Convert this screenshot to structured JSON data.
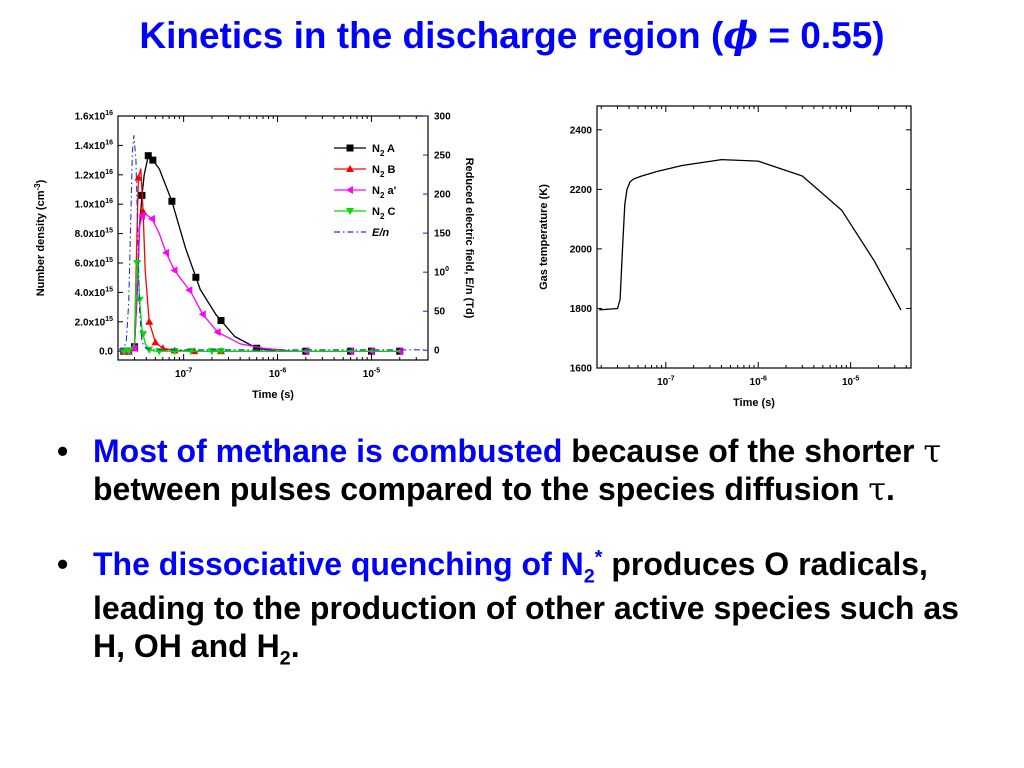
{
  "slide": {
    "title_prefix": "Kinetics in the discharge region (",
    "title_symbol": "ϕ",
    "title_suffix": " = 0.55)"
  },
  "bullets": [
    {
      "highlight": "Most of methane is combusted",
      "t1": " because of the shorter ",
      "sym1": "τ",
      "t2": " between pulses compared to the species diffusion ",
      "sym2": "τ",
      "t3": "."
    },
    {
      "highlight": "The dissociative quenching of N",
      "hl_sub": "2",
      "hl_sup": "*",
      "t1": " produces O radicals, leading to the production of other active species such as H, OH and H",
      "sub1": "2",
      "t2": "."
    }
  ],
  "colors": {
    "title": "#0000ff",
    "highlight": "#0000ff",
    "axis_right": "#1a1acc"
  },
  "chart_data": [
    {
      "type": "line",
      "xlabel": "Time (s)",
      "ylabel": "Number density (cm⁻³)",
      "y2label": "Reduced electric field, E/n (Td)",
      "xscale": "log",
      "xlim": [
        2e-08,
        4e-05
      ],
      "ylim": [
        -600000000000000.0,
        1.6e+16
      ],
      "y2lim": [
        -12.5,
        300
      ],
      "xticks": [
        1e-07,
        1e-06,
        1e-05
      ],
      "xtick_labels": [
        "10-7",
        "10-6",
        "10-5"
      ],
      "yticks": [
        0,
        2000000000000000.0,
        4000000000000000.0,
        6000000000000000.0,
        8000000000000000.0,
        1e+16,
        1.2e+16,
        1.4e+16,
        1.6e+16
      ],
      "ytick_labels": [
        "0.0",
        "2.0x1015",
        "4.0x1015",
        "6.0x1015",
        "8.0x1015",
        "1.0x1016",
        "1.2x1016",
        "1.4x1016",
        "1.6x1016"
      ],
      "y2ticks": [
        0,
        50,
        100,
        150,
        200,
        250,
        300
      ],
      "y2tick_labels": [
        "0",
        "50",
        "100",
        "150",
        "200",
        "250",
        "300"
      ],
      "legend_position": "top-right",
      "series": [
        {
          "name": "N2 A",
          "color": "#000000",
          "marker": "square",
          "axis": "left",
          "x": [
            2.3e-08,
            2.6e-08,
            3e-08,
            3.2e-08,
            3.4e-08,
            3.6e-08,
            3.8e-08,
            4.2e-08,
            4.7e-08,
            5.5e-08,
            7.5e-08,
            1.05e-07,
            1.5e-07,
            2.2e-07,
            3.5e-07,
            6e-07,
            1e-06,
            2e-06,
            5e-06,
            1e-05,
            2e-05
          ],
          "y": [
            0,
            0,
            300000000000000.0,
            4000000000000000.0,
            8500000000000000.0,
            1.06e+16,
            1.2e+16,
            1.33e+16,
            1.3e+16,
            1.24e+16,
            1.02e+16,
            7000000000000000.0,
            4200000000000000.0,
            2500000000000000.0,
            1000000000000000.0,
            200000000000000.0,
            0,
            0,
            0,
            0,
            0
          ],
          "marker_x": [
            2.3e-08,
            2.6e-08,
            3e-08,
            3.6e-08,
            4.2e-08,
            4.7e-08,
            7.5e-08,
            1.35e-07,
            2.5e-07,
            6e-07,
            2e-06,
            6e-06,
            1e-05,
            2e-05
          ]
        },
        {
          "name": "N2 B",
          "color": "#ff0000",
          "marker": "triangle-up",
          "axis": "left",
          "x": [
            2.3e-08,
            2.6e-08,
            3e-08,
            3.1e-08,
            3.3e-08,
            3.5e-08,
            3.7e-08,
            3.9e-08,
            4.3e-08,
            5e-08,
            6e-08,
            8e-08,
            1.2e-07,
            2e-07,
            5e-07,
            1e-06,
            2e-05
          ],
          "y": [
            0,
            0,
            200000000000000.0,
            5000000000000000.0,
            1.18e+16,
            1.24e+16,
            9500000000000000.0,
            5500000000000000.0,
            2000000000000000.0,
            600000000000000.0,
            200000000000000.0,
            50000000000000.0,
            0,
            0,
            0,
            0,
            0
          ],
          "marker_x": [
            2.3e-08,
            2.6e-08,
            3e-08,
            3.3e-08,
            3.7e-08,
            4.3e-08,
            5e-08,
            6e-08,
            8e-08,
            1.3e-07,
            2.5e-07
          ]
        },
        {
          "name": "N2 a'",
          "color": "#ff00ff",
          "marker": "triangle-left",
          "axis": "left",
          "x": [
            2.3e-08,
            2.6e-08,
            3e-08,
            3.2e-08,
            3.4e-08,
            3.6e-08,
            4e-08,
            4.6e-08,
            5.5e-08,
            6.5e-08,
            8e-08,
            1.2e-07,
            1.6e-07,
            2.3e-07,
            4e-07,
            7e-07,
            1.5e-06,
            5e-06,
            2e-05
          ],
          "y": [
            0,
            0,
            200000000000000.0,
            4500000000000000.0,
            8500000000000000.0,
            9200000000000000.0,
            9300000000000000.0,
            9000000000000000.0,
            8000000000000000.0,
            6700000000000000.0,
            5500000000000000.0,
            4000000000000000.0,
            2500000000000000.0,
            1300000000000000.0,
            500000000000000.0,
            200000000000000.0,
            0,
            0,
            0
          ],
          "marker_x": [
            2.3e-08,
            2.6e-08,
            3e-08,
            3.6e-08,
            4.6e-08,
            6.5e-08,
            8e-08,
            1.15e-07,
            1.6e-07,
            2.3e-07,
            2e-06,
            6e-06,
            1e-05,
            2e-05
          ]
        },
        {
          "name": "N2 C",
          "color": "#00dd00",
          "marker": "triangle-down",
          "axis": "left",
          "x": [
            2.3e-08,
            2.6e-08,
            3e-08,
            3.1e-08,
            3.2e-08,
            3.3e-08,
            3.4e-08,
            3.6e-08,
            3.9e-08,
            4.3e-08,
            5e-08,
            6e-08,
            1e-07,
            2e-05
          ],
          "y": [
            0,
            0,
            500000000000000.0,
            4500000000000000.0,
            6000000000000000.0,
            5200000000000000.0,
            3500000000000000.0,
            1500000000000000.0,
            500000000000000.0,
            100000000000000.0,
            0,
            0,
            0,
            0
          ],
          "marker_x": [
            2.3e-08,
            2.6e-08,
            3.2e-08,
            3.4e-08,
            3.7e-08,
            4.3e-08,
            5.5e-08,
            8e-08,
            1.2e-07,
            2e-07,
            2.5e-07
          ]
        },
        {
          "name": "E/n",
          "color": "#2233dd",
          "style": "dash-dot",
          "axis": "right",
          "x": [
            2e-08,
            2.3e-08,
            2.45e-08,
            2.6e-08,
            2.75e-08,
            2.85e-08,
            2.95e-08,
            3.1e-08,
            3.25e-08,
            3.4e-08,
            3.6e-08,
            4e-08,
            5e-08,
            1e-07,
            4e-05
          ],
          "y": [
            1,
            2,
            12,
            60,
            180,
            255,
            275,
            245,
            150,
            50,
            10,
            2,
            0.5,
            0.5,
            0.5
          ]
        }
      ]
    },
    {
      "type": "line",
      "xlabel": "Time (s)",
      "ylabel": "Gas temperature (K)",
      "xscale": "log",
      "xlim": [
        1.8e-08,
        4.5e-05
      ],
      "ylim": [
        1600,
        2480
      ],
      "xticks": [
        1e-07,
        1e-06,
        1e-05
      ],
      "xtick_labels": [
        "10-7",
        "10-6",
        "10-5"
      ],
      "yticks": [
        1600,
        1800,
        2000,
        2200,
        2400
      ],
      "ytick_labels": [
        "1600",
        "1800",
        "2000",
        "2200",
        "2400"
      ],
      "series": [
        {
          "color": "#000000",
          "x": [
            1.9e-08,
            3e-08,
            3.2e-08,
            3.4e-08,
            3.6e-08,
            3.8e-08,
            4.1e-08,
            4.5e-08,
            5.5e-08,
            8e-08,
            1.5e-07,
            4e-07,
            1e-06,
            3e-06,
            8e-06,
            1.8e-05,
            3.5e-05
          ],
          "y": [
            1795,
            1800,
            1830,
            2000,
            2150,
            2200,
            2225,
            2235,
            2245,
            2260,
            2280,
            2300,
            2295,
            2245,
            2130,
            1960,
            1795
          ]
        }
      ]
    }
  ]
}
